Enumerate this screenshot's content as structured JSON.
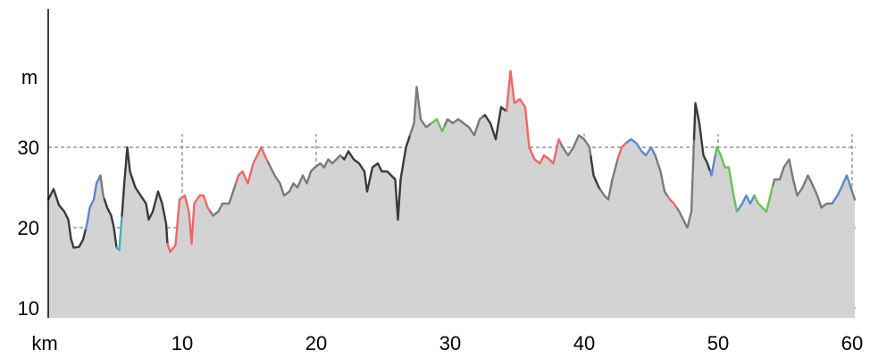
{
  "chart_data": {
    "type": "area",
    "title": "",
    "xlabel": "km",
    "ylabel": "m",
    "xlim": [
      0,
      60.3
    ],
    "ylim": [
      9,
      43
    ],
    "x_ticks": [
      10,
      20,
      30,
      40,
      50,
      60
    ],
    "y_ticks": [
      10,
      20,
      30
    ],
    "grid": true,
    "fill_color": "#d3d3d3",
    "segment_colors": {
      "dark": "#3a3a3a",
      "gray": "#7a7a7a",
      "blue": "#5b87d0",
      "red": "#f06666",
      "green": "#6cbf55",
      "cyan": "#40b0c0"
    },
    "series": [
      {
        "points": [
          [
            0.0,
            23.5
          ],
          [
            0.4,
            24.8
          ],
          [
            0.8,
            22.8
          ],
          [
            1.2,
            22.0
          ],
          [
            1.5,
            21.0
          ],
          [
            1.7,
            18.6
          ],
          [
            1.9,
            17.5
          ],
          [
            2.3,
            17.6
          ],
          [
            2.6,
            18.5
          ],
          [
            2.9,
            20.5
          ],
          [
            3.1,
            22.5
          ],
          [
            3.4,
            23.5
          ],
          [
            3.6,
            25.5
          ],
          [
            3.9,
            26.5
          ],
          [
            4.1,
            24.0
          ],
          [
            4.4,
            22.5
          ],
          [
            4.7,
            21.5
          ],
          [
            4.9,
            20.0
          ],
          [
            5.1,
            17.5
          ],
          [
            5.3,
            17.2
          ],
          [
            5.5,
            21.5
          ],
          [
            5.7,
            26.0
          ],
          [
            5.9,
            30.0
          ],
          [
            6.1,
            27.0
          ],
          [
            6.5,
            25.0
          ],
          [
            6.9,
            24.0
          ],
          [
            7.3,
            23.0
          ],
          [
            7.5,
            21.0
          ],
          [
            7.8,
            22.0
          ],
          [
            8.2,
            24.5
          ],
          [
            8.5,
            23.0
          ],
          [
            8.8,
            20.5
          ],
          [
            8.9,
            18.0
          ],
          [
            9.1,
            17.0
          ],
          [
            9.5,
            17.8
          ],
          [
            9.8,
            23.5
          ],
          [
            10.2,
            24.0
          ],
          [
            10.5,
            22.0
          ],
          [
            10.7,
            18.0
          ],
          [
            10.9,
            23.0
          ],
          [
            11.3,
            24.0
          ],
          [
            11.6,
            24.0
          ],
          [
            11.9,
            22.5
          ],
          [
            12.3,
            21.5
          ],
          [
            12.7,
            22.0
          ],
          [
            13.0,
            23.0
          ],
          [
            13.5,
            23.0
          ],
          [
            13.8,
            24.5
          ],
          [
            14.2,
            26.5
          ],
          [
            14.5,
            27.0
          ],
          [
            14.9,
            25.5
          ],
          [
            15.3,
            28.0
          ],
          [
            15.6,
            29.0
          ],
          [
            15.9,
            30.0
          ],
          [
            16.3,
            28.5
          ],
          [
            16.6,
            27.5
          ],
          [
            16.9,
            26.5
          ],
          [
            17.3,
            25.5
          ],
          [
            17.6,
            24.0
          ],
          [
            18.0,
            24.5
          ],
          [
            18.3,
            25.5
          ],
          [
            18.6,
            25.0
          ],
          [
            19.0,
            26.5
          ],
          [
            19.3,
            25.5
          ],
          [
            19.6,
            27.0
          ],
          [
            19.9,
            27.5
          ],
          [
            20.3,
            28.0
          ],
          [
            20.6,
            27.5
          ],
          [
            20.9,
            28.5
          ],
          [
            21.2,
            28.0
          ],
          [
            21.5,
            28.5
          ],
          [
            21.8,
            29.0
          ],
          [
            22.1,
            28.5
          ],
          [
            22.4,
            29.5
          ],
          [
            22.8,
            28.5
          ],
          [
            23.2,
            28.0
          ],
          [
            23.6,
            27.0
          ],
          [
            23.8,
            24.5
          ],
          [
            24.2,
            27.5
          ],
          [
            24.6,
            28.0
          ],
          [
            24.9,
            27.0
          ],
          [
            25.3,
            27.0
          ],
          [
            25.6,
            26.5
          ],
          [
            25.9,
            26.0
          ],
          [
            26.1,
            21.0
          ],
          [
            26.3,
            26.0
          ],
          [
            26.7,
            30.0
          ],
          [
            27.0,
            31.5
          ],
          [
            27.3,
            33.0
          ],
          [
            27.5,
            37.5
          ],
          [
            27.8,
            33.5
          ],
          [
            28.2,
            32.5
          ],
          [
            28.6,
            33.0
          ],
          [
            29.0,
            33.5
          ],
          [
            29.4,
            32.0
          ],
          [
            29.8,
            33.5
          ],
          [
            30.2,
            33.0
          ],
          [
            30.6,
            33.5
          ],
          [
            31.0,
            33.0
          ],
          [
            31.4,
            32.5
          ],
          [
            31.8,
            31.5
          ],
          [
            32.2,
            33.5
          ],
          [
            32.6,
            34.0
          ],
          [
            33.0,
            33.0
          ],
          [
            33.4,
            31.0
          ],
          [
            33.8,
            35.0
          ],
          [
            34.2,
            34.5
          ],
          [
            34.5,
            39.5
          ],
          [
            34.8,
            35.5
          ],
          [
            35.2,
            36.0
          ],
          [
            35.6,
            35.0
          ],
          [
            35.9,
            30.0
          ],
          [
            36.3,
            28.5
          ],
          [
            36.7,
            28.0
          ],
          [
            37.0,
            29.0
          ],
          [
            37.4,
            28.5
          ],
          [
            37.7,
            28.0
          ],
          [
            38.1,
            31.0
          ],
          [
            38.4,
            30.0
          ],
          [
            38.8,
            29.0
          ],
          [
            39.2,
            30.0
          ],
          [
            39.6,
            31.5
          ],
          [
            40.0,
            31.0
          ],
          [
            40.4,
            30.0
          ],
          [
            40.7,
            26.5
          ],
          [
            41.1,
            25.0
          ],
          [
            41.5,
            24.0
          ],
          [
            41.8,
            23.5
          ],
          [
            42.1,
            26.0
          ],
          [
            42.5,
            28.5
          ],
          [
            42.8,
            30.0
          ],
          [
            43.1,
            30.5
          ],
          [
            43.5,
            31.0
          ],
          [
            43.9,
            30.5
          ],
          [
            44.3,
            29.5
          ],
          [
            44.6,
            29.0
          ],
          [
            45.0,
            30.0
          ],
          [
            45.3,
            29.0
          ],
          [
            45.7,
            27.0
          ],
          [
            46.0,
            24.5
          ],
          [
            46.4,
            23.5
          ],
          [
            46.7,
            23.0
          ],
          [
            47.1,
            22.0
          ],
          [
            47.4,
            21.0
          ],
          [
            47.7,
            20.0
          ],
          [
            48.0,
            22.0
          ],
          [
            48.3,
            35.5
          ],
          [
            48.6,
            33.0
          ],
          [
            48.9,
            29.0
          ],
          [
            49.2,
            28.0
          ],
          [
            49.5,
            26.5
          ],
          [
            49.9,
            30.0
          ],
          [
            50.2,
            29.0
          ],
          [
            50.5,
            27.5
          ],
          [
            50.8,
            27.5
          ],
          [
            51.1,
            24.5
          ],
          [
            51.4,
            22.0
          ],
          [
            51.8,
            23.0
          ],
          [
            52.1,
            24.0
          ],
          [
            52.4,
            23.0
          ],
          [
            52.7,
            24.0
          ],
          [
            53.0,
            23.0
          ],
          [
            53.3,
            22.5
          ],
          [
            53.6,
            22.0
          ],
          [
            53.9,
            24.0
          ],
          [
            54.2,
            26.0
          ],
          [
            54.6,
            26.0
          ],
          [
            54.9,
            27.5
          ],
          [
            55.3,
            28.5
          ],
          [
            55.6,
            26.0
          ],
          [
            55.9,
            24.0
          ],
          [
            56.3,
            25.0
          ],
          [
            56.7,
            26.5
          ],
          [
            57.0,
            25.5
          ],
          [
            57.4,
            24.0
          ],
          [
            57.7,
            22.5
          ],
          [
            58.1,
            23.0
          ],
          [
            58.5,
            23.0
          ],
          [
            58.9,
            24.0
          ],
          [
            59.2,
            25.0
          ],
          [
            59.6,
            26.5
          ],
          [
            59.9,
            25.0
          ],
          [
            60.2,
            23.5
          ]
        ],
        "segments": [
          {
            "from": 0.0,
            "to": 2.8,
            "color": "dark"
          },
          {
            "from": 2.8,
            "to": 3.8,
            "color": "blue"
          },
          {
            "from": 3.8,
            "to": 4.2,
            "color": "gray"
          },
          {
            "from": 4.2,
            "to": 5.1,
            "color": "dark"
          },
          {
            "from": 5.1,
            "to": 5.5,
            "color": "cyan"
          },
          {
            "from": 5.5,
            "to": 8.9,
            "color": "dark"
          },
          {
            "from": 8.9,
            "to": 11.5,
            "color": "red"
          },
          {
            "from": 11.5,
            "to": 12.1,
            "color": "red"
          },
          {
            "from": 12.1,
            "to": 14.0,
            "color": "gray"
          },
          {
            "from": 14.0,
            "to": 16.4,
            "color": "red"
          },
          {
            "from": 16.4,
            "to": 22.0,
            "color": "gray"
          },
          {
            "from": 22.0,
            "to": 27.0,
            "color": "dark"
          },
          {
            "from": 27.0,
            "to": 28.6,
            "color": "gray"
          },
          {
            "from": 28.6,
            "to": 29.6,
            "color": "green"
          },
          {
            "from": 29.6,
            "to": 32.5,
            "color": "gray"
          },
          {
            "from": 32.5,
            "to": 34.2,
            "color": "dark"
          },
          {
            "from": 34.2,
            "to": 35.9,
            "color": "red"
          },
          {
            "from": 35.9,
            "to": 37.0,
            "color": "red"
          },
          {
            "from": 37.0,
            "to": 38.3,
            "color": "red"
          },
          {
            "from": 38.3,
            "to": 40.5,
            "color": "gray"
          },
          {
            "from": 40.5,
            "to": 41.2,
            "color": "dark"
          },
          {
            "from": 41.2,
            "to": 42.5,
            "color": "gray"
          },
          {
            "from": 42.5,
            "to": 43.2,
            "color": "red"
          },
          {
            "from": 43.2,
            "to": 45.2,
            "color": "blue"
          },
          {
            "from": 45.2,
            "to": 46.3,
            "color": "gray"
          },
          {
            "from": 46.3,
            "to": 47.0,
            "color": "red"
          },
          {
            "from": 47.0,
            "to": 48.2,
            "color": "gray"
          },
          {
            "from": 48.2,
            "to": 49.4,
            "color": "dark"
          },
          {
            "from": 49.4,
            "to": 49.8,
            "color": "blue"
          },
          {
            "from": 49.8,
            "to": 51.5,
            "color": "green"
          },
          {
            "from": 51.5,
            "to": 52.7,
            "color": "blue"
          },
          {
            "from": 52.7,
            "to": 54.1,
            "color": "green"
          },
          {
            "from": 54.1,
            "to": 58.5,
            "color": "gray"
          },
          {
            "from": 58.5,
            "to": 59.9,
            "color": "blue"
          },
          {
            "from": 59.9,
            "to": 60.3,
            "color": "gray"
          }
        ]
      }
    ]
  }
}
